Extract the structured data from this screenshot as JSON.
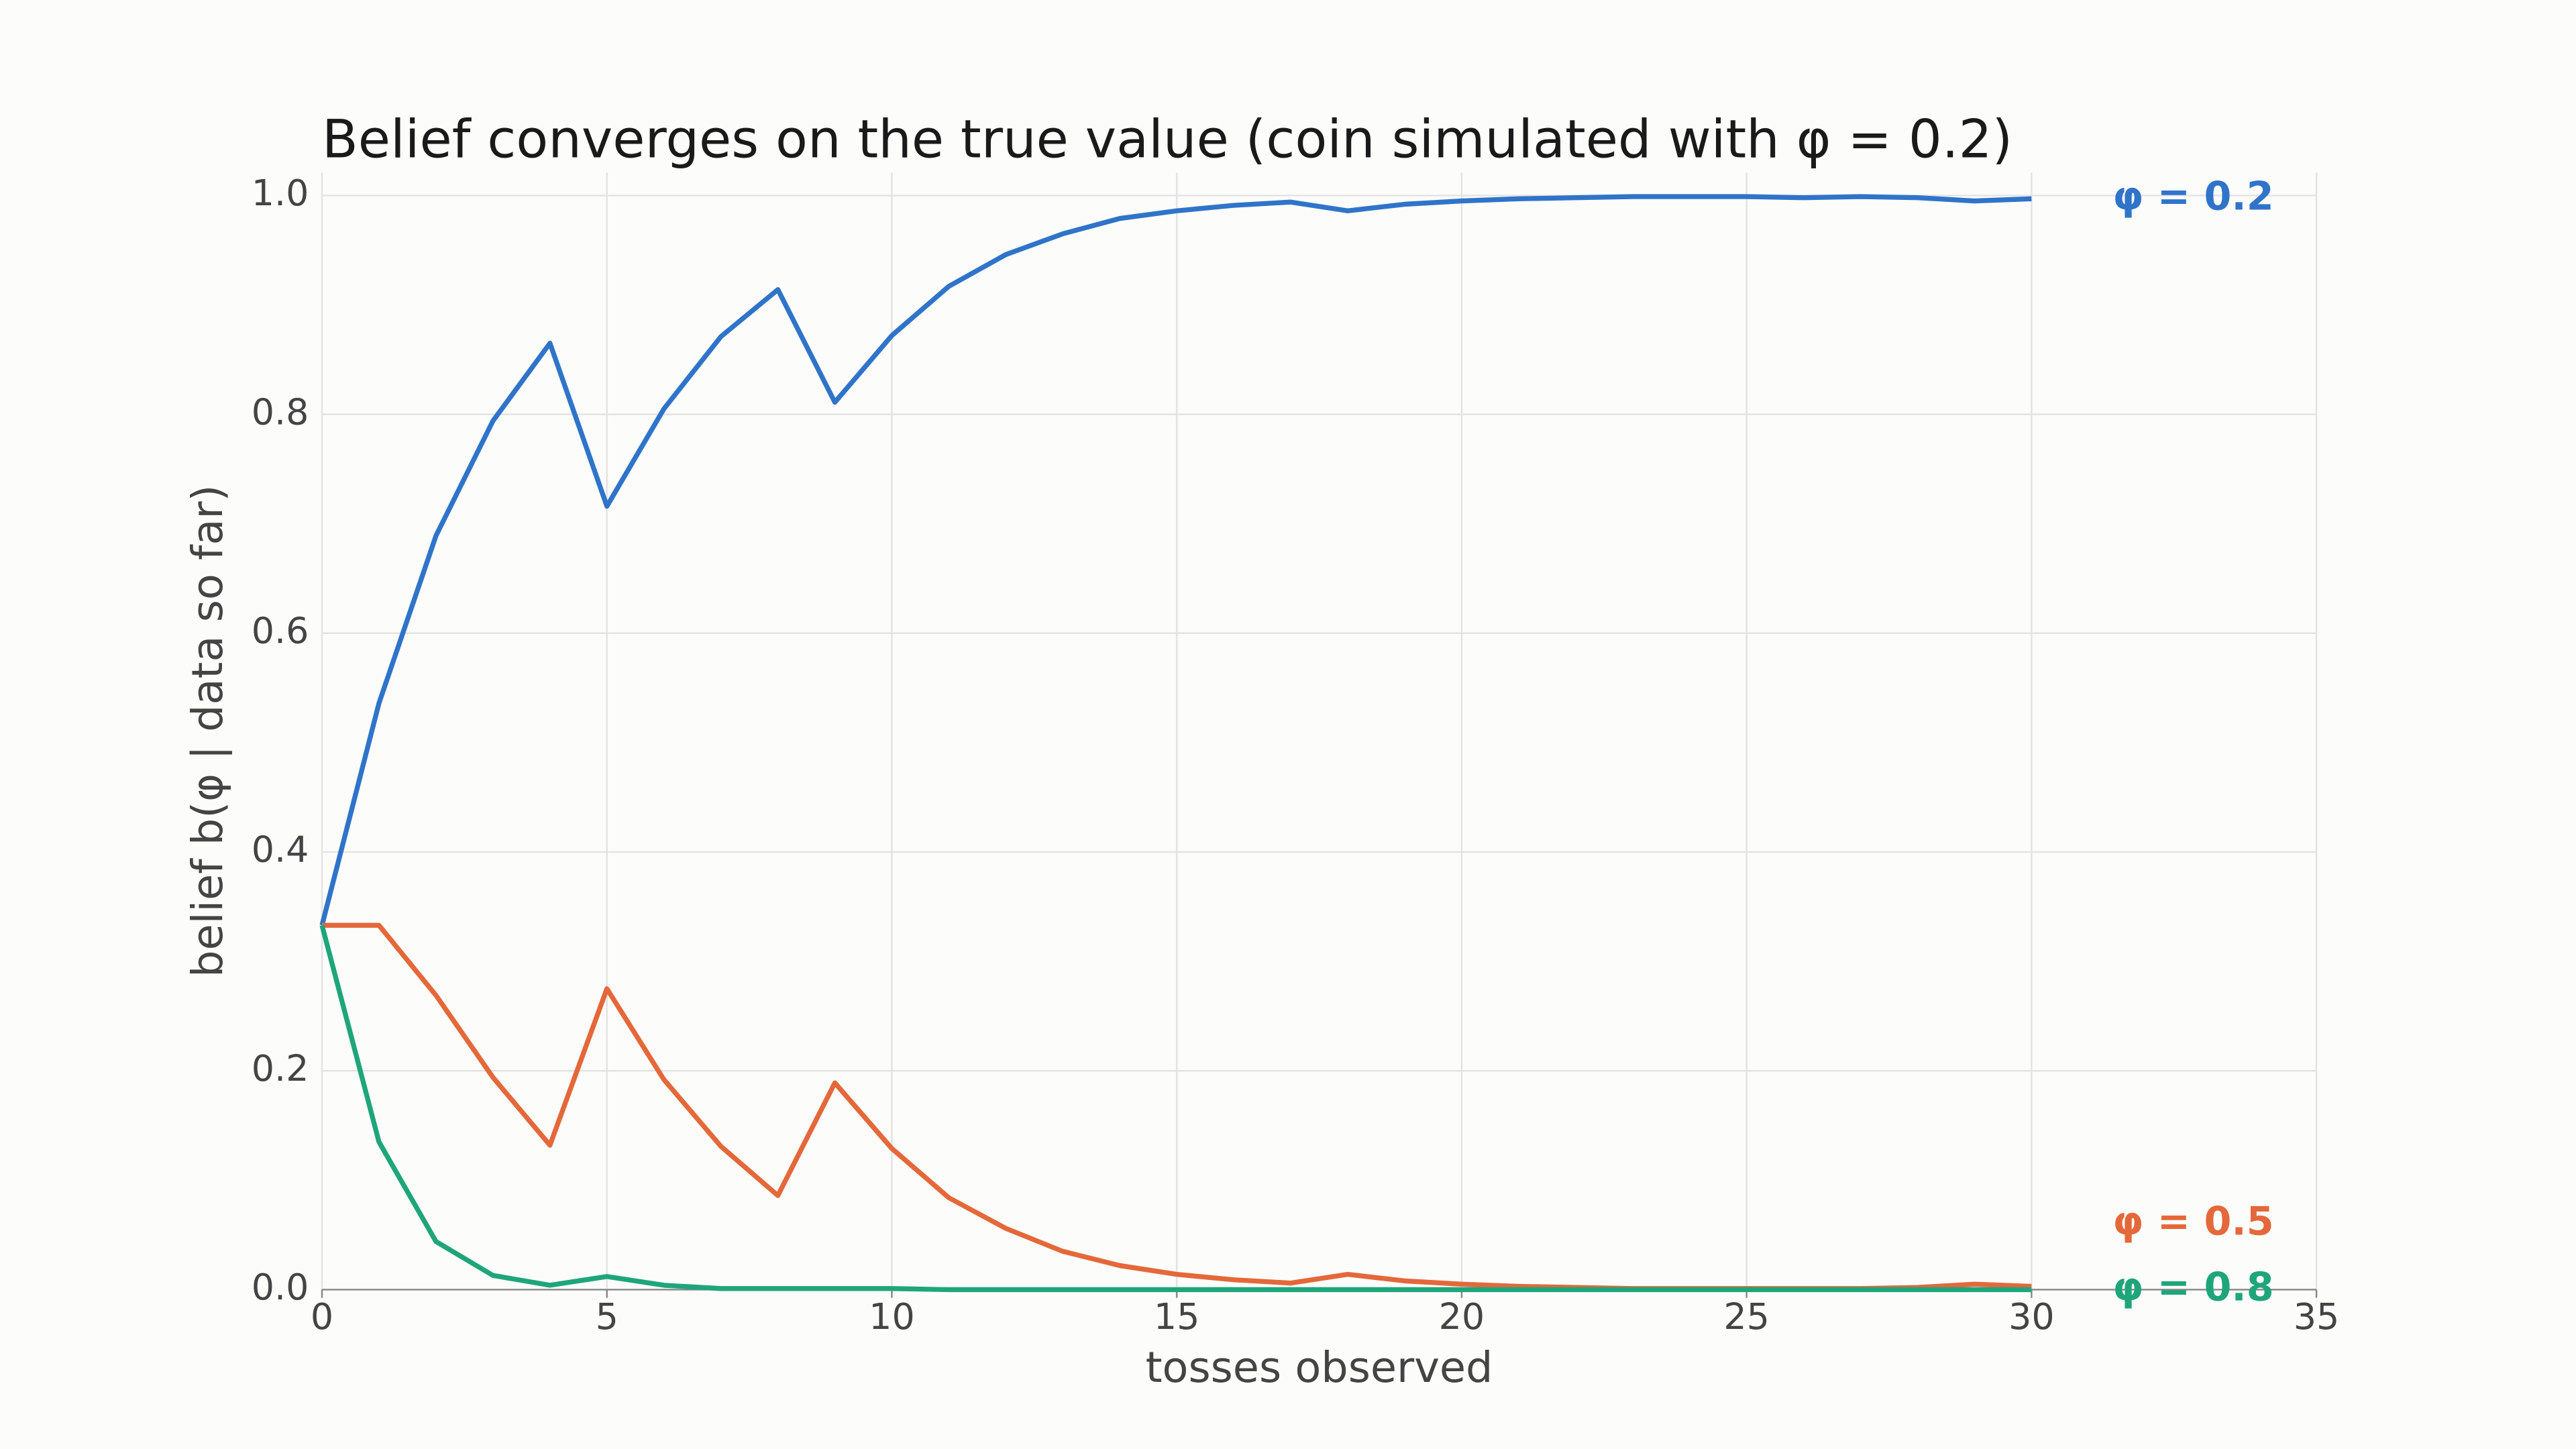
{
  "chart_data": {
    "type": "line",
    "title": "Belief converges on the true value (coin simulated with φ = 0.2)",
    "xlabel": "tosses observed",
    "ylabel": "belief b(φ | data so far)",
    "x": [
      0,
      1,
      2,
      3,
      4,
      5,
      6,
      7,
      8,
      9,
      10,
      11,
      12,
      13,
      14,
      15,
      16,
      17,
      18,
      19,
      20,
      21,
      22,
      23,
      24,
      25,
      26,
      27,
      28,
      29,
      30
    ],
    "series": [
      {
        "name": "φ = 0.2",
        "color": "#2f74c9",
        "values": [
          0.333,
          0.536,
          0.689,
          0.794,
          0.865,
          0.716,
          0.805,
          0.871,
          0.914,
          0.811,
          0.872,
          0.917,
          0.946,
          0.965,
          0.979,
          0.986,
          0.991,
          0.994,
          0.986,
          0.992,
          0.995,
          0.997,
          0.998,
          0.999,
          0.999,
          0.999,
          0.998,
          0.999,
          0.998,
          0.995,
          0.997
        ]
      },
      {
        "name": "φ = 0.5",
        "color": "#e4683a",
        "values": [
          0.333,
          0.333,
          0.269,
          0.194,
          0.132,
          0.275,
          0.192,
          0.131,
          0.086,
          0.189,
          0.129,
          0.084,
          0.056,
          0.035,
          0.022,
          0.014,
          0.009,
          0.006,
          0.014,
          0.008,
          0.005,
          0.003,
          0.002,
          0.001,
          0.001,
          0.001,
          0.001,
          0.001,
          0.002,
          0.005,
          0.003
        ]
      },
      {
        "name": "φ = 0.8",
        "color": "#1fa57a",
        "values": [
          0.333,
          0.135,
          0.044,
          0.013,
          0.004,
          0.012,
          0.004,
          0.001,
          0.001,
          0.001,
          0.001,
          0,
          0,
          0,
          0,
          0,
          0,
          0,
          0,
          0,
          0,
          0,
          0,
          0,
          0,
          0,
          0,
          0,
          0,
          0,
          0
        ]
      }
    ],
    "xlim": [
      0,
      35
    ],
    "xticks": [
      0,
      5,
      10,
      15,
      20,
      25,
      30,
      35
    ],
    "ylim": [
      0,
      1
    ],
    "yticks": [
      {
        "value": 0,
        "label": "0.0"
      },
      0.2,
      0.4,
      0.6,
      0.8,
      {
        "value": 1,
        "label": "1.0"
      }
    ],
    "grid": true
  }
}
